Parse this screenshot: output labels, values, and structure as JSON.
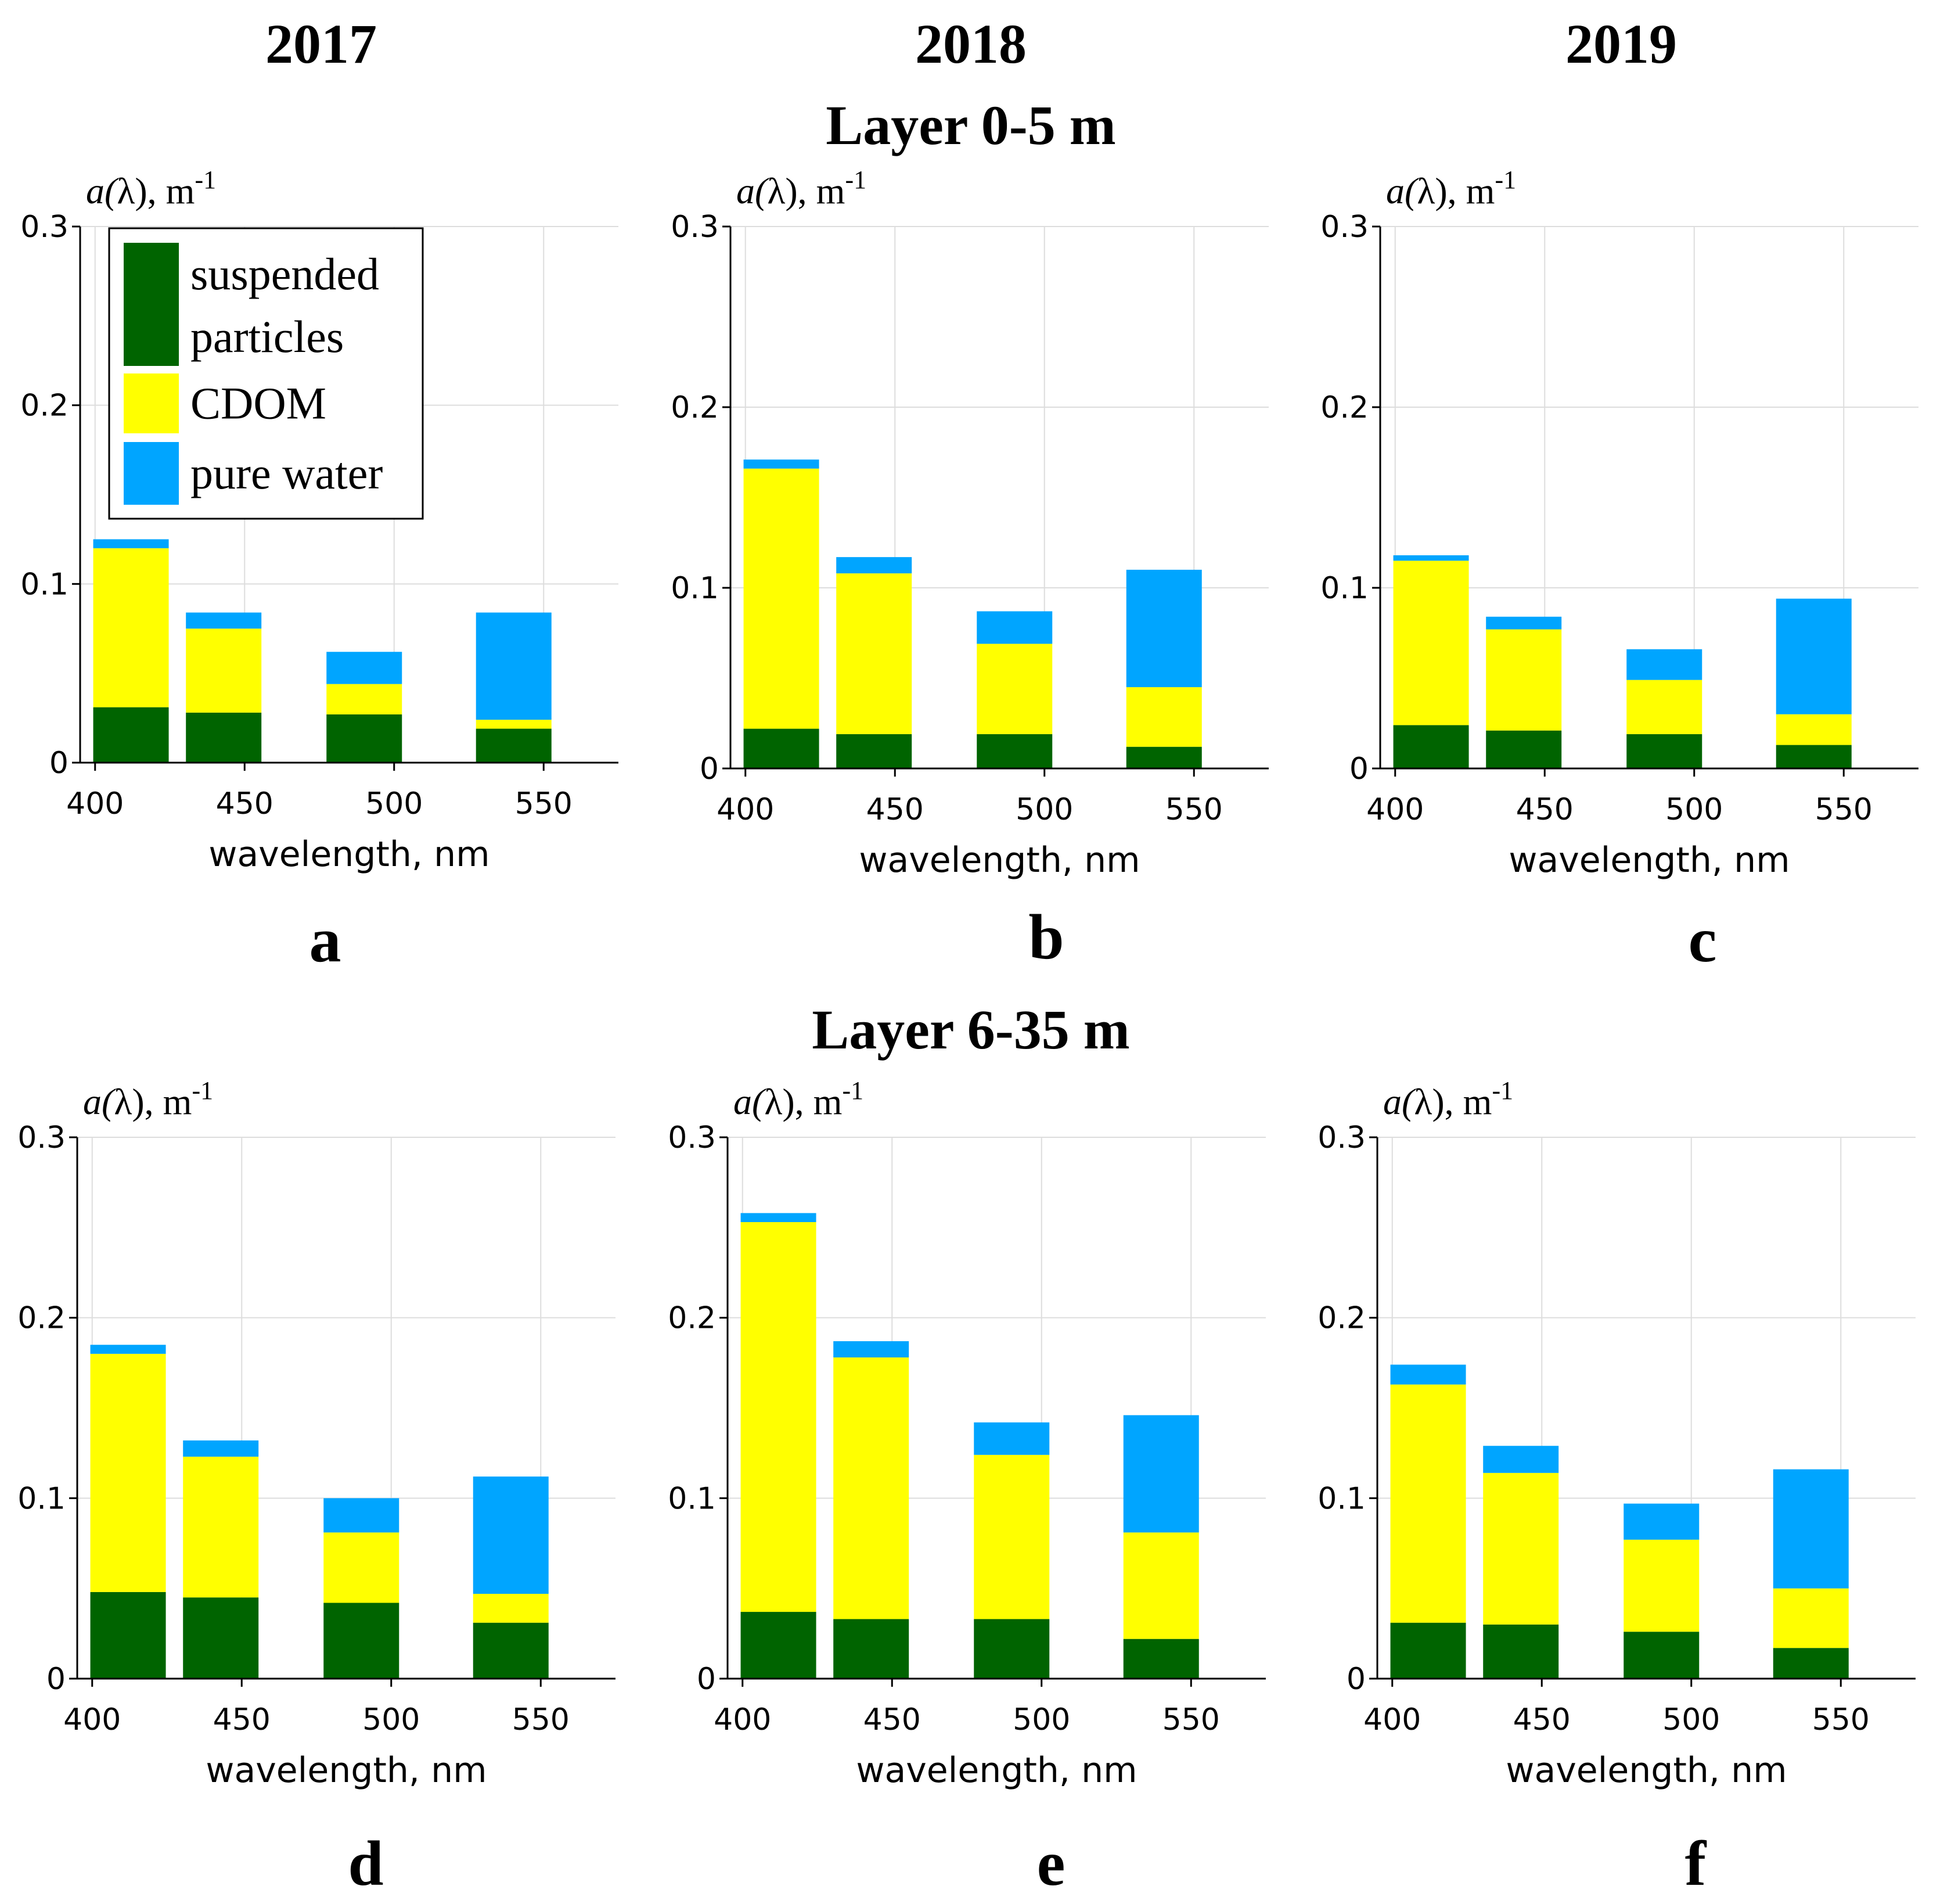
{
  "headers": {
    "year_2017": "2017",
    "year_2018": "2018",
    "year_2019": "2019",
    "layer_top": "Layer 0-5 m",
    "layer_bottom": "Layer 6-35 m"
  },
  "legend": {
    "items": [
      {
        "key": "particles",
        "label_lines": [
          "suspended",
          "particles"
        ],
        "color": "#006400"
      },
      {
        "key": "cdom",
        "label_lines": [
          "CDOM"
        ],
        "color": "#ffff00"
      },
      {
        "key": "water",
        "label_lines": [
          "pure water"
        ],
        "color": "#00a5ff"
      }
    ]
  },
  "colors": {
    "particles": "#006400",
    "cdom": "#ffff00",
    "water": "#00a5ff",
    "grid": "#dddddd",
    "axis": "#000000"
  },
  "chart_data": [
    {
      "type": "bar",
      "stacked": true,
      "panel": "a",
      "year": "2017",
      "layer": "Layer 0-5 m",
      "categories": [
        400,
        450,
        500,
        550
      ],
      "x_bar_centers": [
        412,
        443,
        490,
        540
      ],
      "series": [
        {
          "name": "suspended particles",
          "values": [
            0.031,
            0.028,
            0.027,
            0.019
          ]
        },
        {
          "name": "CDOM",
          "values": [
            0.089,
            0.047,
            0.017,
            0.005
          ]
        },
        {
          "name": "pure water",
          "values": [
            0.005,
            0.009,
            0.018,
            0.06
          ]
        }
      ],
      "ylabel_main": "a(",
      "ylabel_lambda": "λ",
      "ylabel_rest": "), m",
      "ylabel_sup": "-1",
      "xlabel": "wavelength, nm",
      "xlim": [
        395,
        575
      ],
      "ylim": [
        0,
        0.3
      ],
      "xticks": [
        400,
        450,
        500,
        550
      ],
      "yticks": [
        "0",
        "0.1",
        "0.2",
        "0.3"
      ],
      "legend": true
    },
    {
      "type": "bar",
      "stacked": true,
      "panel": "b",
      "year": "2018",
      "layer": "Layer 0-5 m",
      "categories": [
        400,
        450,
        500,
        550
      ],
      "x_bar_centers": [
        412,
        443,
        490,
        540
      ],
      "series": [
        {
          "name": "suspended particles",
          "values": [
            0.022,
            0.019,
            0.019,
            0.012
          ]
        },
        {
          "name": "CDOM",
          "values": [
            0.144,
            0.089,
            0.05,
            0.033
          ]
        },
        {
          "name": "pure water",
          "values": [
            0.005,
            0.009,
            0.018,
            0.065
          ]
        }
      ],
      "ylabel_main": "a(",
      "ylabel_lambda": "λ",
      "ylabel_rest": "), m",
      "ylabel_sup": "-1",
      "xlabel": "wavelength, nm",
      "xlim": [
        395,
        575
      ],
      "ylim": [
        0,
        0.3
      ],
      "xticks": [
        400,
        450,
        500,
        550
      ],
      "yticks": [
        "0",
        "0.1",
        "0.2",
        "0.3"
      ],
      "legend": false
    },
    {
      "type": "bar",
      "stacked": true,
      "panel": "c",
      "year": "2019",
      "layer": "Layer 0-5 m",
      "categories": [
        400,
        450,
        500,
        550
      ],
      "x_bar_centers": [
        412,
        443,
        490,
        540
      ],
      "series": [
        {
          "name": "suspended particles",
          "values": [
            0.024,
            0.021,
            0.019,
            0.013
          ]
        },
        {
          "name": "CDOM",
          "values": [
            0.091,
            0.056,
            0.03,
            0.017
          ]
        },
        {
          "name": "pure water",
          "values": [
            0.003,
            0.007,
            0.017,
            0.064
          ]
        }
      ],
      "ylabel_main": "a(",
      "ylabel_lambda": "λ",
      "ylabel_rest": "), m",
      "ylabel_sup": "-1",
      "xlabel": "wavelength, nm",
      "xlim": [
        395,
        575
      ],
      "ylim": [
        0,
        0.3
      ],
      "xticks": [
        400,
        450,
        500,
        550
      ],
      "yticks": [
        "0",
        "0.1",
        "0.2",
        "0.3"
      ],
      "legend": false
    },
    {
      "type": "bar",
      "stacked": true,
      "panel": "d",
      "year": "2017",
      "layer": "Layer 6-35 m",
      "categories": [
        400,
        450,
        500,
        550
      ],
      "x_bar_centers": [
        412,
        443,
        490,
        540
      ],
      "series": [
        {
          "name": "suspended particles",
          "values": [
            0.048,
            0.045,
            0.042,
            0.031
          ]
        },
        {
          "name": "CDOM",
          "values": [
            0.132,
            0.078,
            0.039,
            0.016
          ]
        },
        {
          "name": "pure water",
          "values": [
            0.005,
            0.009,
            0.019,
            0.065
          ]
        }
      ],
      "ylabel_main": "a(",
      "ylabel_lambda": "λ",
      "ylabel_rest": "), m",
      "ylabel_sup": "-1",
      "xlabel": "wavelength, nm",
      "xlim": [
        395,
        575
      ],
      "ylim": [
        0,
        0.3
      ],
      "xticks": [
        400,
        450,
        500,
        550
      ],
      "yticks": [
        "0",
        "0.1",
        "0.2",
        "0.3"
      ],
      "legend": false
    },
    {
      "type": "bar",
      "stacked": true,
      "panel": "e",
      "year": "2018",
      "layer": "Layer 6-35 m",
      "categories": [
        400,
        450,
        500,
        550
      ],
      "x_bar_centers": [
        412,
        443,
        490,
        540
      ],
      "series": [
        {
          "name": "suspended particles",
          "values": [
            0.037,
            0.033,
            0.033,
            0.022
          ]
        },
        {
          "name": "CDOM",
          "values": [
            0.216,
            0.145,
            0.091,
            0.059
          ]
        },
        {
          "name": "pure water",
          "values": [
            0.005,
            0.009,
            0.018,
            0.065
          ]
        }
      ],
      "ylabel_main": "a(",
      "ylabel_lambda": "λ",
      "ylabel_rest": "), m",
      "ylabel_sup": "-1",
      "xlabel": "wavelength, nm",
      "xlim": [
        395,
        575
      ],
      "ylim": [
        0,
        0.3
      ],
      "xticks": [
        400,
        450,
        500,
        550
      ],
      "yticks": [
        "0",
        "0.1",
        "0.2",
        "0.3"
      ],
      "legend": false
    },
    {
      "type": "bar",
      "stacked": true,
      "panel": "f",
      "year": "2019",
      "layer": "Layer 6-35 m",
      "categories": [
        400,
        450,
        500,
        550
      ],
      "x_bar_centers": [
        412,
        443,
        490,
        540
      ],
      "series": [
        {
          "name": "suspended particles",
          "values": [
            0.031,
            0.03,
            0.026,
            0.017
          ]
        },
        {
          "name": "CDOM",
          "values": [
            0.132,
            0.084,
            0.051,
            0.033
          ]
        },
        {
          "name": "pure water",
          "values": [
            0.011,
            0.015,
            0.02,
            0.066
          ]
        }
      ],
      "ylabel_main": "a(",
      "ylabel_lambda": "λ",
      "ylabel_rest": "), m",
      "ylabel_sup": "-1",
      "xlabel": "wavelength, nm",
      "xlim": [
        395,
        575
      ],
      "ylim": [
        0,
        0.3
      ],
      "xticks": [
        400,
        450,
        500,
        550
      ],
      "yticks": [
        "0",
        "0.1",
        "0.2",
        "0.3"
      ],
      "legend": false
    }
  ]
}
